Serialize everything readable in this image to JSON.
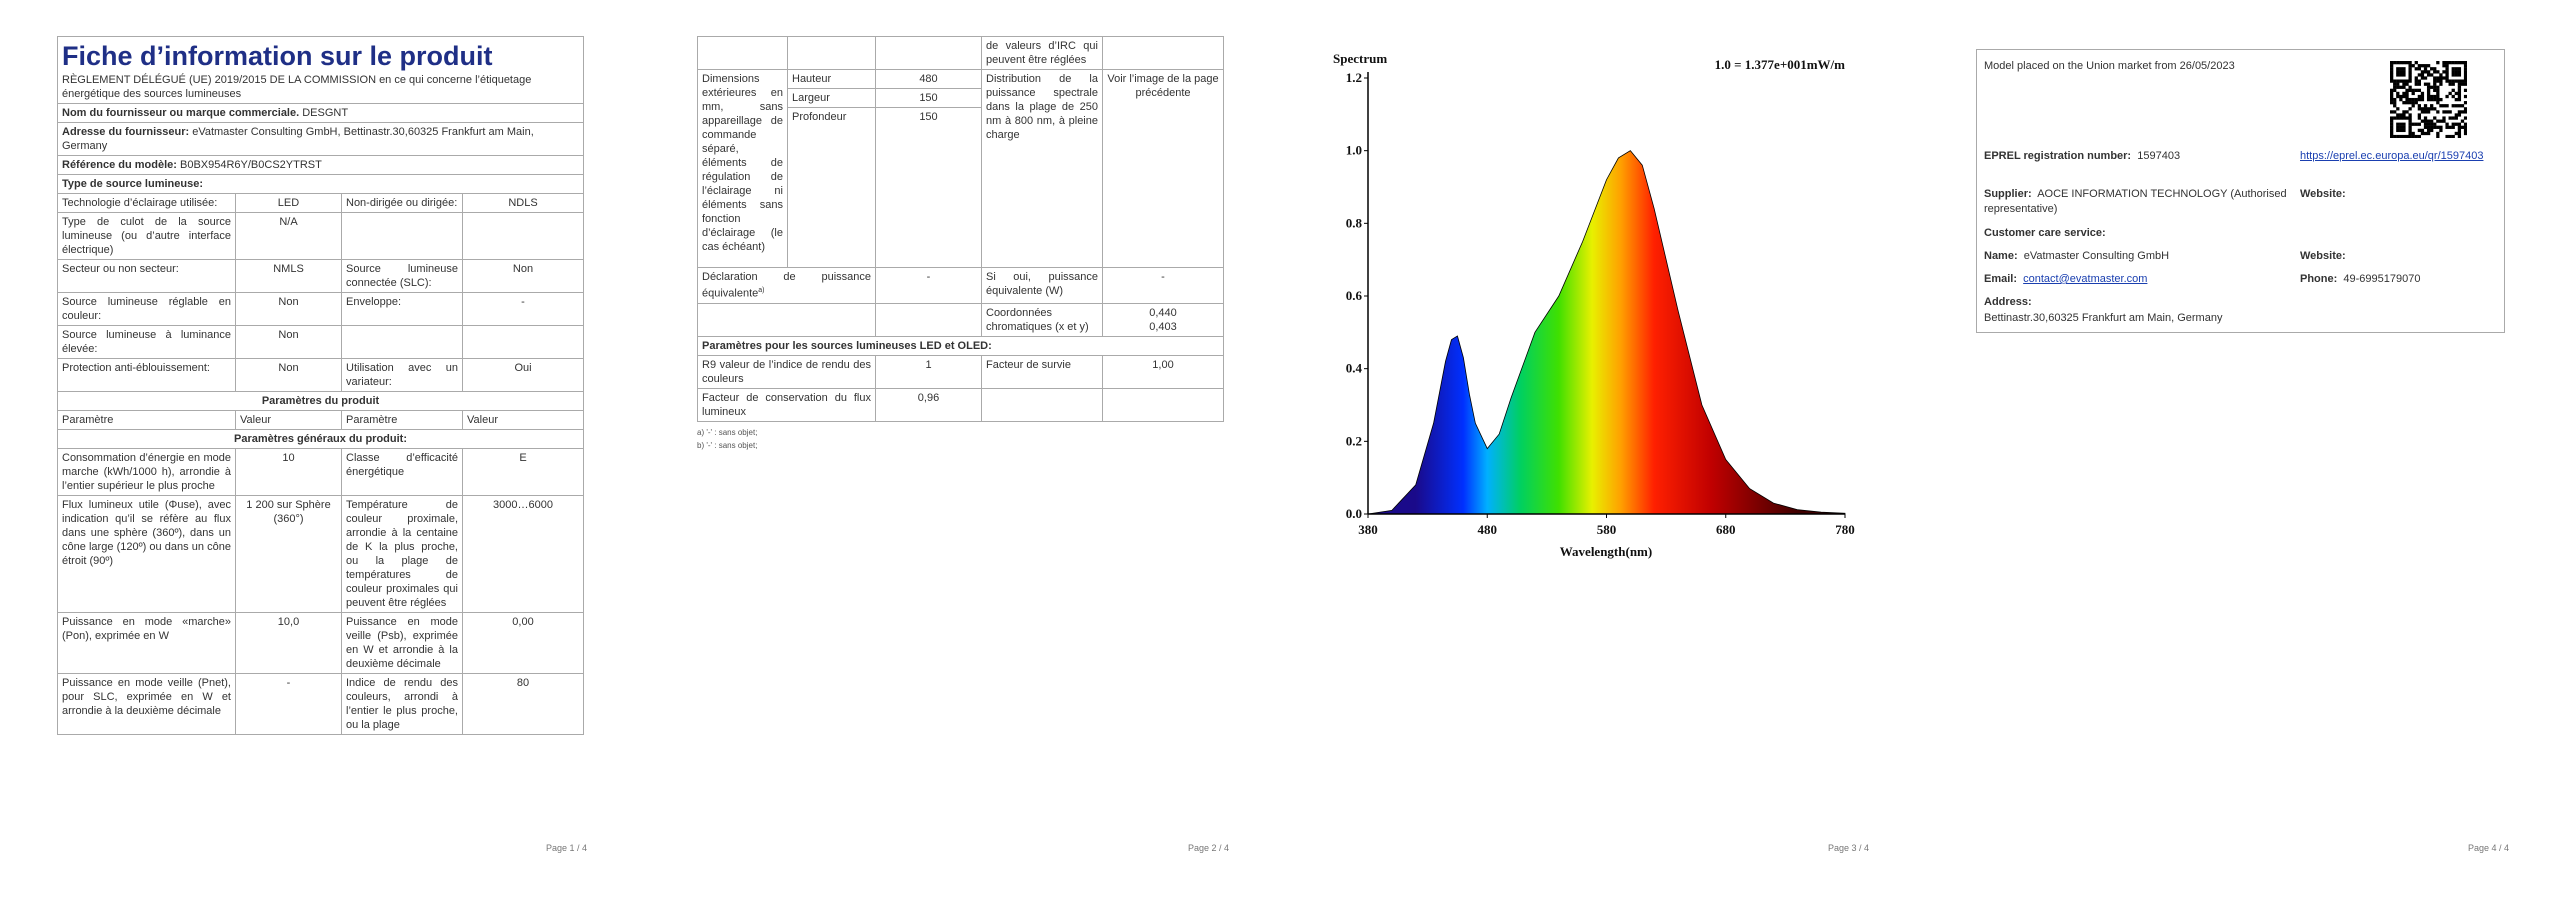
{
  "page1": {
    "title": "Fiche d’information sur le produit",
    "regulation": "RÈGLEMENT DÉLÉGUÉ (UE) 2019/2015 DE LA COMMISSION en ce qui concerne l’étiquetage énergétique des sources lumineuses",
    "supplier_label": "Nom du fournisseur ou marque commerciale.",
    "supplier": "DESGNT",
    "address_label": "Adresse du fournisseur:",
    "address": "eVatmaster Consulting GmbH, Bettinastr.30,60325 Frankfurt am Main, Germany",
    "model_label": "Référence du modèle:",
    "model": "B0BX954R6Y/B0CS2YTRST",
    "type_heading": "Type de source lumineuse:",
    "type_rows": [
      [
        "Technologie d’éclairage utilisée:",
        "LED",
        "Non-dirigée ou dirigée:",
        "NDLS"
      ],
      [
        "Type de culot de la source lumineuse (ou d’autre interface électrique)",
        "N/A",
        null,
        null
      ],
      [
        "Secteur ou non secteur:",
        "NMLS",
        "Source lumineuse connectée (SLC):",
        "Non"
      ],
      [
        "Source lumineuse réglable en couleur:",
        "Non",
        "Enveloppe:",
        "-"
      ],
      [
        "Source lumineuse à luminance élevée:",
        "Non",
        null,
        null
      ],
      [
        "Protection anti-éblouissement:",
        "Non",
        "Utilisation avec un variateur:",
        "Oui"
      ]
    ],
    "params_heading": "Paramètres du produit",
    "column_headers": [
      "Paramètre",
      "Valeur",
      "Paramètre",
      "Valeur"
    ],
    "general_heading": "Paramètres généraux du produit:",
    "general_rows": [
      [
        "Consommation d’énergie en mode marche (kWh/1000 h), arrondie à l’entier supérieur le plus proche",
        "10",
        "Classe d’efficacité énergétique",
        "E"
      ],
      [
        "Flux lumineux utile (Φuse), avec indication qu’il se réfère au flux dans une sphère (360º), dans un cône large (120º) ou dans un cône étroit (90º)",
        "1 200 sur Sphère (360°)",
        "Température de couleur proximale, arrondie à la centaine de K la plus proche, ou la plage de températures de couleur proximales qui peuvent être réglées",
        "3000…6000"
      ],
      [
        "Puissance en mode «marche» (Pon), exprimée en W",
        "10,0",
        "Puissance en mode veille (Psb), exprimée en W et arrondie à la deuxième décimale",
        "0,00"
      ],
      [
        "Puissance en mode veille (Pnet), pour SLC, exprimée en W et arrondie à la deuxième décimale",
        "-",
        "Indice de rendu des couleurs, arrondi à l’entier le plus proche, ou la plage",
        "80"
      ]
    ],
    "page_number": "Page 1 / 4"
  },
  "page2": {
    "irc_continued": "de valeurs d’IRC qui peuvent être réglées",
    "dimensions_label": "Dimensions extérieures en mm, sans appareillage de commande séparé, éléments de régulation de l’éclairage ni éléments sans fonction d’éclairage (le cas échéant)",
    "dimensions": [
      [
        "Hauteur",
        "480"
      ],
      [
        "Largeur",
        "150"
      ],
      [
        "Profondeur",
        "150"
      ]
    ],
    "spectral_label": "Distribution de la puissance spectrale dans la plage de 250 nm à 800 nm, à pleine charge",
    "spectral_value": "Voir l’image de la page précédente",
    "equiv_label": "Déclaration de puissance équivalente",
    "equiv_note": "a)",
    "equiv_value": "-",
    "equiv_power_label": "Si oui, puissance équivalente (W)",
    "equiv_power_value": "-",
    "chroma_label": "Coordonnées chromatiques (x et y)",
    "chroma_values": [
      "0,440",
      "0,403"
    ],
    "led_heading": "Paramètres pour les sources lumineuses LED et OLED:",
    "led_rows": [
      [
        "R9 valeur de l’indice de rendu des couleurs",
        "1",
        "Facteur de survie",
        "1,00"
      ],
      [
        "Facteur de conservation du flux lumineux",
        "0,96",
        null,
        null
      ]
    ],
    "footnotes": [
      "a) '-' : sans objet;",
      "b) '-' : sans objet;"
    ],
    "page_number": "Page 2 / 4"
  },
  "page3": {
    "spectrum": {
      "type": "area",
      "title": "Spectrum",
      "scale_note": "1.0 = 1.377e+001mW/m",
      "x_label": "Wavelength(nm)",
      "x": [
        380,
        400,
        420,
        435,
        445,
        450,
        455,
        460,
        465,
        470,
        480,
        490,
        500,
        520,
        540,
        560,
        580,
        590,
        600,
        610,
        620,
        640,
        660,
        680,
        700,
        720,
        740,
        760,
        780
      ],
      "values": [
        0,
        0.01,
        0.08,
        0.25,
        0.42,
        0.48,
        0.49,
        0.43,
        0.33,
        0.25,
        0.18,
        0.22,
        0.32,
        0.5,
        0.6,
        0.75,
        0.92,
        0.98,
        1.0,
        0.96,
        0.84,
        0.56,
        0.3,
        0.15,
        0.07,
        0.03,
        0.012,
        0.005,
        0.002
      ],
      "xlim": [
        380,
        780
      ],
      "ylim": [
        0,
        1.2
      ],
      "xticks": [
        380,
        480,
        580,
        680,
        780
      ],
      "yticks": [
        {
          "value": 0,
          "label": "0.0"
        },
        {
          "value": 0.2,
          "label": "0.2"
        },
        {
          "value": 0.4,
          "label": "0.4"
        },
        {
          "value": 0.6,
          "label": "0.6"
        },
        {
          "value": 0.8,
          "label": "0.8"
        },
        {
          "value": 1,
          "label": "1.0"
        },
        {
          "value": 1.2,
          "label": "1.2"
        }
      ]
    },
    "page_number": "Page 3 / 4"
  },
  "page4": {
    "market": "Model placed on the Union market from 26/05/2023",
    "eprel_label": "EPREL registration number:",
    "eprel": "1597403",
    "eprel_link": "https://eprel.ec.europa.eu/qr/1597403",
    "supplier_label": "Supplier:",
    "supplier": "AOCE INFORMATION TECHNOLOGY (Authorised representative)",
    "website_label": "Website:",
    "care_label": "Customer care service:",
    "name_label": "Name:",
    "name": "eVatmaster Consulting GmbH",
    "website2_label": "Website:",
    "email_label": "Email:",
    "email": "contact@evatmaster.com",
    "phone_label": "Phone:",
    "phone": "49-6995179070",
    "address_label": "Address:",
    "address": "Bettinastr.30,60325 Frankfurt am Main, Germany",
    "page_number": "Page 4 / 4"
  }
}
